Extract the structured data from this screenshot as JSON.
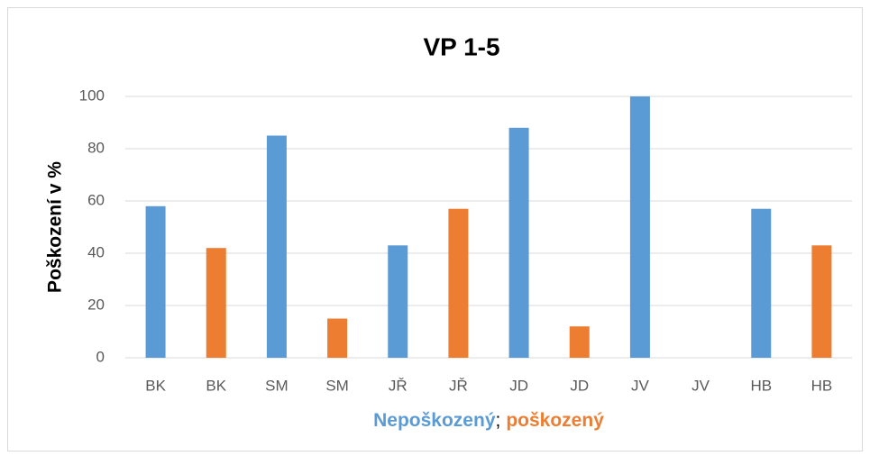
{
  "chart_data": {
    "type": "bar",
    "title": "VP 1-5",
    "ylabel": "Poškození v %",
    "categories": [
      "BK",
      "BK",
      "SM",
      "SM",
      "JŘ",
      "JŘ",
      "JD",
      "JD",
      "JV",
      "JV",
      "HB",
      "HB"
    ],
    "series": [
      {
        "name": "Nepoškozený",
        "color": "#5b9bd5",
        "values": [
          58,
          null,
          85,
          null,
          43,
          null,
          88,
          null,
          100,
          null,
          57,
          null
        ]
      },
      {
        "name": "poškozený",
        "color": "#ed7d31",
        "values": [
          null,
          42,
          null,
          15,
          null,
          57,
          null,
          12,
          null,
          0,
          null,
          43
        ]
      }
    ],
    "x_label_separator": ";",
    "ylim": [
      0,
      100
    ],
    "yticks": [
      0,
      20,
      40,
      60,
      80,
      100
    ],
    "grid": true
  }
}
